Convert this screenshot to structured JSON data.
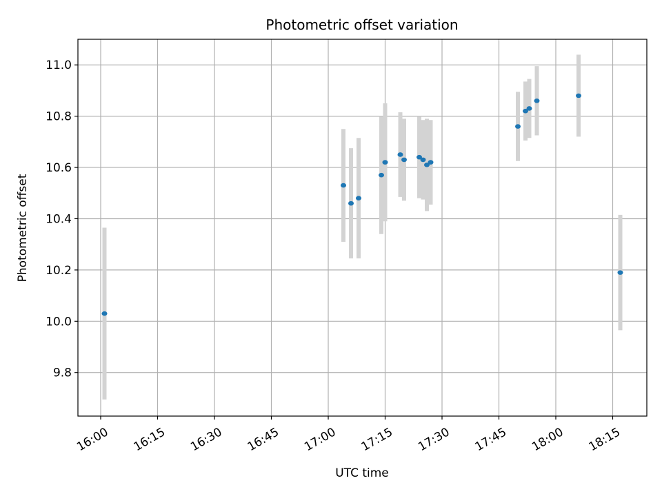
{
  "chart_data": {
    "type": "scatter",
    "title": "Photometric offset variation",
    "xlabel": "UTC time",
    "ylabel": "Photometric offset",
    "x_ticks": [
      "16:00",
      "16:15",
      "16:30",
      "16:45",
      "17:00",
      "17:15",
      "17:30",
      "17:45",
      "18:00",
      "18:15"
    ],
    "y_ticks": [
      "9.8",
      "10.0",
      "10.2",
      "10.4",
      "10.6",
      "10.8",
      "11.0"
    ],
    "xlim": [
      "15:54",
      "18:24"
    ],
    "ylim": [
      9.63,
      11.1
    ],
    "grid": true,
    "colors": {
      "point": "#1f77b4",
      "errorbar": "#d3d3d3",
      "grid": "#b0b0b0"
    },
    "series": [
      {
        "points": [
          {
            "x": "16:01",
            "y": 10.03,
            "err": 0.335
          },
          {
            "x": "17:04",
            "y": 10.53,
            "err": 0.22
          },
          {
            "x": "17:06",
            "y": 10.46,
            "err": 0.215
          },
          {
            "x": "17:08",
            "y": 10.48,
            "err": 0.235
          },
          {
            "x": "17:14",
            "y": 10.57,
            "err": 0.23
          },
          {
            "x": "17:15",
            "y": 10.62,
            "err": 0.23
          },
          {
            "x": "17:19",
            "y": 10.65,
            "err": 0.165
          },
          {
            "x": "17:20",
            "y": 10.63,
            "err": 0.16
          },
          {
            "x": "17:24",
            "y": 10.64,
            "err": 0.16
          },
          {
            "x": "17:25",
            "y": 10.63,
            "err": 0.155
          },
          {
            "x": "17:26",
            "y": 10.61,
            "err": 0.18
          },
          {
            "x": "17:27",
            "y": 10.62,
            "err": 0.165
          },
          {
            "x": "17:50",
            "y": 10.76,
            "err": 0.135
          },
          {
            "x": "17:52",
            "y": 10.82,
            "err": 0.115
          },
          {
            "x": "17:53",
            "y": 10.83,
            "err": 0.115
          },
          {
            "x": "17:55",
            "y": 10.86,
            "err": 0.135
          },
          {
            "x": "18:06",
            "y": 10.88,
            "err": 0.16
          },
          {
            "x": "18:17",
            "y": 10.19,
            "err": 0.225
          }
        ]
      }
    ]
  }
}
